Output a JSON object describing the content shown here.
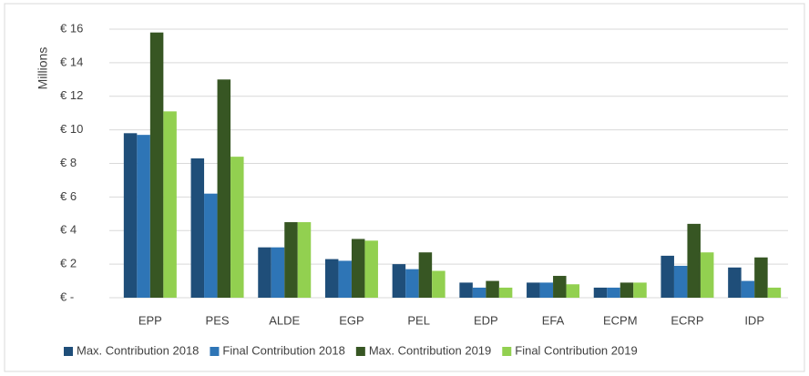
{
  "chart_data": {
    "type": "bar",
    "y_label": "Millions",
    "categories": [
      "EPP",
      "PES",
      "ALDE",
      "EGP",
      "PEL",
      "EDP",
      "EFA",
      "ECPM",
      "ECRP",
      "IDP"
    ],
    "series": [
      {
        "name": "Max. Contribution 2018",
        "color": "#1f4e79",
        "values": [
          9.8,
          8.3,
          3.0,
          2.3,
          2.0,
          0.9,
          0.9,
          0.6,
          2.5,
          1.8
        ]
      },
      {
        "name": "Final Contribution 2018",
        "color": "#2e75b6",
        "values": [
          9.7,
          6.2,
          3.0,
          2.2,
          1.7,
          0.6,
          0.9,
          0.6,
          1.9,
          1.0
        ]
      },
      {
        "name": "Max. Contribution 2019",
        "color": "#375623",
        "values": [
          15.8,
          13.0,
          4.5,
          3.5,
          2.7,
          1.0,
          1.3,
          0.9,
          4.4,
          2.4
        ]
      },
      {
        "name": "Final Contribution 2019",
        "color": "#92d050",
        "values": [
          11.1,
          8.4,
          4.5,
          3.4,
          1.6,
          0.6,
          0.8,
          0.9,
          2.7,
          0.6
        ]
      }
    ],
    "ylim": [
      0,
      16
    ],
    "yticks": [
      {
        "value": 0,
        "label": "€ -"
      },
      {
        "value": 2,
        "label": "€ 2"
      },
      {
        "value": 4,
        "label": "€ 4"
      },
      {
        "value": 6,
        "label": "€ 6"
      },
      {
        "value": 8,
        "label": "€ 8"
      },
      {
        "value": 10,
        "label": "€ 10"
      },
      {
        "value": 12,
        "label": "€ 12"
      },
      {
        "value": 14,
        "label": "€ 14"
      },
      {
        "value": 16,
        "label": "€ 16"
      }
    ],
    "grid": true,
    "legend": "bottom"
  }
}
